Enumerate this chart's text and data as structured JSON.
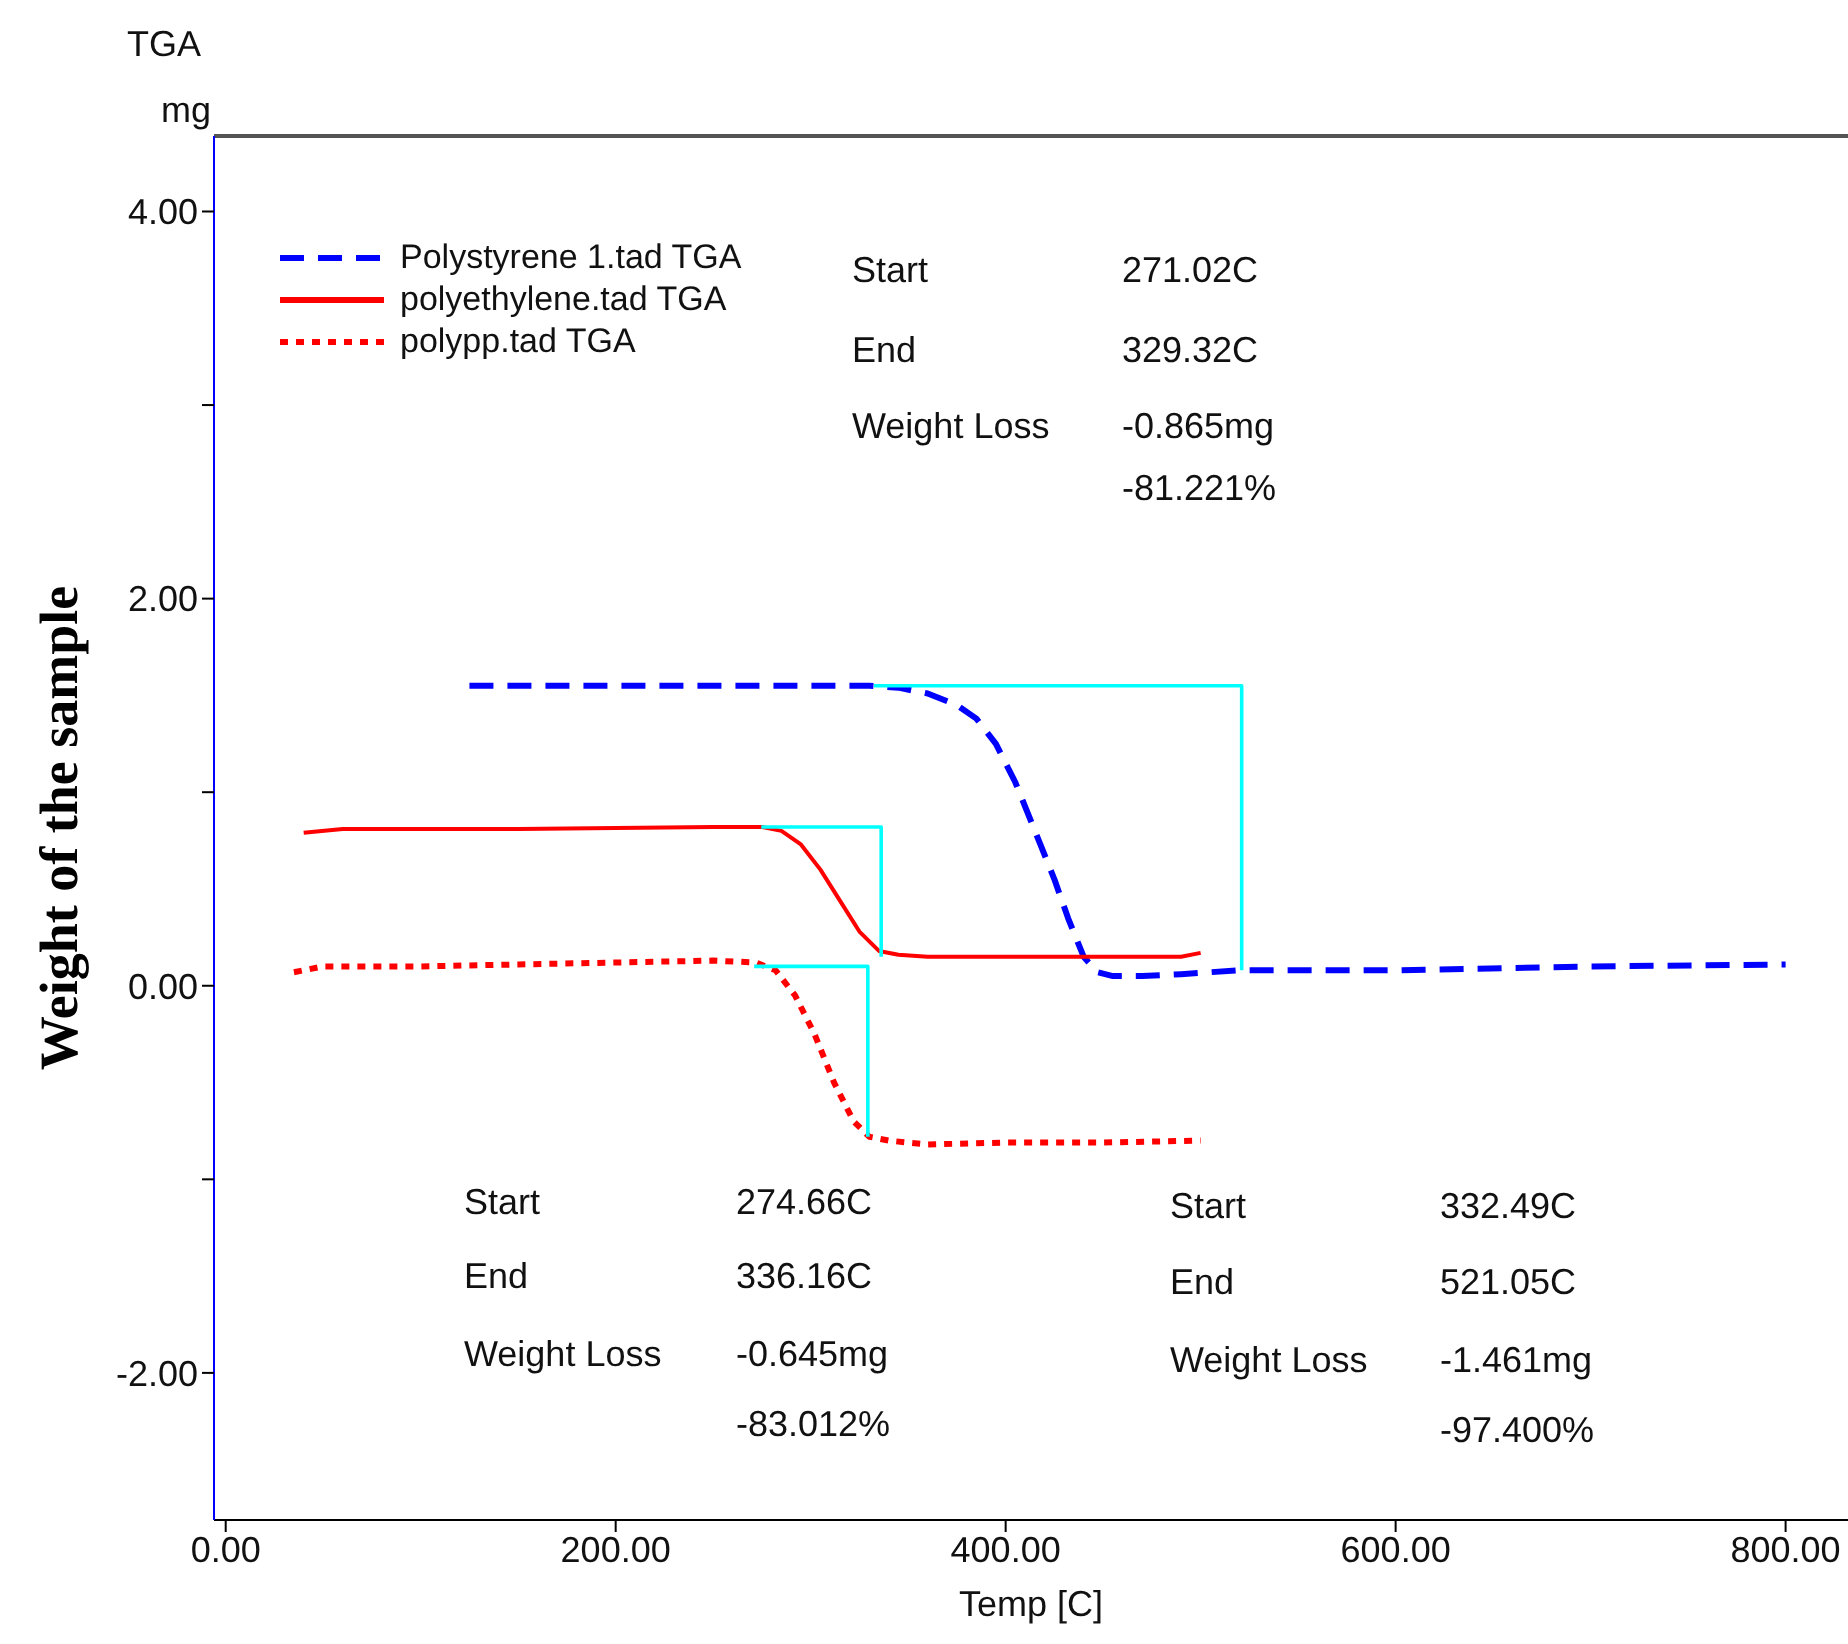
{
  "chart_data": {
    "type": "line",
    "xlabel": "Temp [C]",
    "ylabel": "Weight of the sample",
    "xlim": [
      -6,
      832
    ],
    "ylim": [
      -2.76,
      4.39
    ],
    "xticks": [
      {
        "value": 0,
        "label": "0.00"
      },
      {
        "value": 200,
        "label": "200.00"
      },
      {
        "value": 400,
        "label": "400.00"
      },
      {
        "value": 600,
        "label": "600.00"
      },
      {
        "value": 800,
        "label": "800.00"
      }
    ],
    "yticks": [
      {
        "value": -2,
        "label": "-2.00"
      },
      {
        "value": -1,
        "label": null
      },
      {
        "value": 0,
        "label": "0.00"
      },
      {
        "value": 1,
        "label": null
      },
      {
        "value": 2,
        "label": "2.00"
      },
      {
        "value": 3,
        "label": null
      },
      {
        "value": 4,
        "label": "4.00"
      }
    ],
    "grid": false,
    "legend": "top left",
    "series": [
      {
        "name": "Polystyrene 1.tad  TGA",
        "color": "#0000ff",
        "line_style": "dashed",
        "x": [
          125,
          200,
          300,
          330,
          345,
          360,
          375,
          385,
          395,
          405,
          415,
          425,
          432,
          440,
          447,
          455,
          470,
          490,
          520,
          600,
          700,
          800
        ],
        "values": [
          1.55,
          1.55,
          1.55,
          1.55,
          1.54,
          1.51,
          1.45,
          1.38,
          1.25,
          1.05,
          0.8,
          0.55,
          0.35,
          0.15,
          0.07,
          0.05,
          0.05,
          0.06,
          0.08,
          0.08,
          0.1,
          0.11
        ]
      },
      {
        "name": "polyethylene.tad  TGA",
        "color": "#ff0000",
        "line_style": "solid",
        "x": [
          40,
          60,
          150,
          250,
          275,
          285,
          295,
          305,
          315,
          325,
          335,
          345,
          360,
          400,
          450,
          490,
          500
        ],
        "values": [
          0.79,
          0.81,
          0.81,
          0.82,
          0.82,
          0.8,
          0.73,
          0.6,
          0.44,
          0.28,
          0.18,
          0.16,
          0.15,
          0.15,
          0.15,
          0.15,
          0.17
        ]
      },
      {
        "name": "polypp.tad  TGA",
        "color": "#ff0000",
        "line_style": "dotted",
        "x": [
          35,
          50,
          100,
          150,
          200,
          250,
          272,
          282,
          292,
          302,
          312,
          322,
          330,
          340,
          360,
          400,
          450,
          500
        ],
        "values": [
          0.07,
          0.1,
          0.1,
          0.11,
          0.12,
          0.13,
          0.12,
          0.08,
          -0.05,
          -0.25,
          -0.5,
          -0.7,
          -0.78,
          -0.8,
          -0.82,
          -0.81,
          -0.81,
          -0.8
        ]
      },
      {
        "color": "#00ffff",
        "line_style": "solid",
        "x": [
          332.49,
          521.05,
          521.05
        ],
        "values": [
          1.55,
          1.55,
          0.08
        ]
      },
      {
        "color": "#00ffff",
        "line_style": "solid",
        "x": [
          274.66,
          336.16,
          336.16
        ],
        "values": [
          0.82,
          0.82,
          0.15
        ]
      },
      {
        "color": "#00ffff",
        "line_style": "solid",
        "x": [
          271.02,
          329.32,
          329.32
        ],
        "values": [
          0.1,
          0.1,
          -0.78
        ]
      }
    ],
    "annotations": [
      "TGA",
      "mg",
      "Start",
      "271.02C",
      "End",
      "329.32C",
      "Weight Loss",
      "-0.865mg",
      "-81.221%",
      "Start",
      "274.66C",
      "End",
      "336.16C",
      "Weight Loss",
      "-0.645mg",
      "-83.012%",
      "Start",
      "332.49C",
      "End",
      "521.05C",
      "Weight Loss",
      "-1.461mg",
      "-97.400%"
    ]
  }
}
